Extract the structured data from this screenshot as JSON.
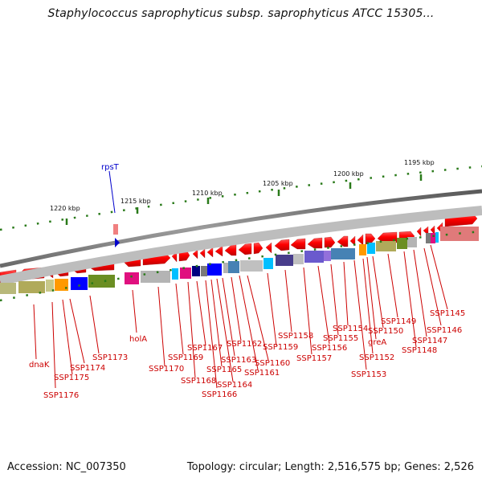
{
  "header": {
    "title": "Staphylococcus saprophyticus subsp. saprophyticus ATCC 15305..."
  },
  "footer": {
    "accession": "Accession: NC_007350",
    "summary": "Topology: circular; Length: 2,516,575 bp; Genes: 2,526"
  },
  "map": {
    "scale_labels": [
      "1220 kbp",
      "1215 kbp",
      "1210 kbp",
      "1205 kbp",
      "1200 kbp",
      "1195 kbp"
    ],
    "highlight_gene": "rpsT",
    "gene_labels": [
      "dnaK",
      "SSP1176",
      "SSP1175",
      "SSP1174",
      "SSP1173",
      "holA",
      "SSP1170",
      "SSP1169",
      "SSP1168",
      "SSP1167",
      "SSP1166",
      "SSP1165",
      "SSP1164",
      "SSP1163",
      "SSP1162",
      "SSP1161",
      "SSP1160",
      "SSP1159",
      "SSP1158",
      "SSP1157",
      "SSP1156",
      "SSP1155",
      "SSP1154",
      "SSP1153",
      "SSP1152",
      "greA",
      "SSP1150",
      "SSP1149",
      "SSP1148",
      "SSP1147",
      "SSP1146",
      "SSP1145"
    ],
    "colors": {
      "gene_arrow": "#ff0000",
      "backbone": "#7a7a7a",
      "label": "#cc0000",
      "highlight": "#0000cc",
      "tick": "#2a7a1a"
    }
  }
}
